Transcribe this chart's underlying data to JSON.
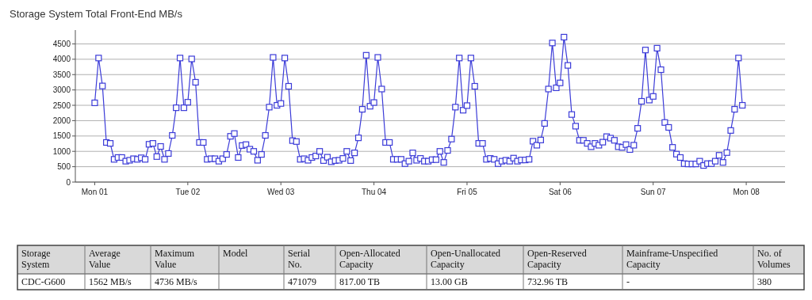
{
  "chart_data": [
    {
      "type": "line",
      "title": "Storage System Total Front-End MB/s",
      "series": [
        {
          "color": "#3c3cd8",
          "values": [
            2580,
            4040,
            3130,
            1290,
            1260,
            740,
            800,
            800,
            680,
            710,
            760,
            740,
            790,
            740,
            1230,
            1260,
            830,
            1160,
            740,
            930,
            1520,
            2420,
            4040,
            2420,
            2600,
            4010,
            3250,
            1290,
            1290,
            740,
            760,
            760,
            680,
            760,
            900,
            1490,
            1580,
            800,
            1190,
            1220,
            1070,
            1000,
            710,
            900,
            1520,
            2440,
            4060,
            2500,
            2560,
            4040,
            3120,
            1350,
            1320,
            740,
            760,
            710,
            800,
            850,
            1000,
            700,
            810,
            660,
            700,
            710,
            770,
            1000,
            700,
            950,
            1440,
            2370,
            4130,
            2470,
            2590,
            4060,
            3030,
            1290,
            1290,
            740,
            740,
            740,
            600,
            680,
            950,
            710,
            770,
            680,
            680,
            730,
            730,
            1000,
            640,
            1030,
            1400,
            2440,
            4040,
            2340,
            2490,
            4040,
            3120,
            1260,
            1260,
            740,
            770,
            740,
            600,
            680,
            710,
            680,
            780,
            680,
            720,
            720,
            740,
            1330,
            1200,
            1370,
            1910,
            3030,
            4530,
            3070,
            3230,
            4720,
            3800,
            2200,
            1820,
            1360,
            1360,
            1260,
            1150,
            1260,
            1200,
            1300,
            1480,
            1430,
            1360,
            1150,
            1130,
            1220,
            1060,
            1200,
            1750,
            2630,
            4300,
            2670,
            2790,
            4360,
            3660,
            1940,
            1780,
            1130,
            910,
            800,
            600,
            590,
            590,
            590,
            680,
            540,
            600,
            600,
            680,
            870,
            640,
            960,
            1680,
            2370,
            4040,
            2500,
            null
          ]
        }
      ],
      "categories": [
        "Mon 01",
        null,
        null,
        null,
        null,
        null,
        null,
        null,
        null,
        null,
        null,
        null,
        null,
        null,
        null,
        null,
        null,
        null,
        null,
        null,
        null,
        null,
        null,
        null,
        "Tue 02",
        null,
        null,
        null,
        null,
        null,
        null,
        null,
        null,
        null,
        null,
        null,
        null,
        null,
        null,
        null,
        null,
        null,
        null,
        null,
        null,
        null,
        null,
        null,
        "Wed 03",
        null,
        null,
        null,
        null,
        null,
        null,
        null,
        null,
        null,
        null,
        null,
        null,
        null,
        null,
        null,
        null,
        null,
        null,
        null,
        null,
        null,
        null,
        null,
        "Thu 04",
        null,
        null,
        null,
        null,
        null,
        null,
        null,
        null,
        null,
        null,
        null,
        null,
        null,
        null,
        null,
        null,
        null,
        null,
        null,
        null,
        null,
        null,
        null,
        "Fri 05",
        null,
        null,
        null,
        null,
        null,
        null,
        null,
        null,
        null,
        null,
        null,
        null,
        null,
        null,
        null,
        null,
        null,
        null,
        null,
        null,
        null,
        null,
        null,
        "Sat 06",
        null,
        null,
        null,
        null,
        null,
        null,
        null,
        null,
        null,
        null,
        null,
        null,
        null,
        null,
        null,
        null,
        null,
        null,
        null,
        null,
        null,
        null,
        null,
        "Sun 07",
        null,
        null,
        null,
        null,
        null,
        null,
        null,
        null,
        null,
        null,
        null,
        null,
        null,
        null,
        null,
        null,
        null,
        null,
        null,
        null,
        null,
        null,
        null,
        "Mon 08"
      ],
      "ylim": [
        0,
        4950
      ],
      "yticks": [
        0,
        500,
        1000,
        1500,
        2000,
        2500,
        3000,
        3500,
        4000,
        4500
      ],
      "grid": "y",
      "marker": "square"
    },
    {
      "type": "other",
      "categories": [
        "Storage System",
        "Average Value",
        "Maximum Value",
        "Model",
        "Serial No.",
        "Open-Allocated Capacity",
        "Open-Unallocated Capacity",
        "Open-Reserved Capacity",
        "Mainframe-Unspecified Capacity",
        "No. of Volumes"
      ],
      "annotations": [
        "CDC-G600",
        "1562 MB/s",
        "4736 MB/s",
        null,
        "471079",
        "817.00 TB",
        "13.00 GB",
        "732.96 TB",
        "-",
        "380"
      ]
    }
  ]
}
